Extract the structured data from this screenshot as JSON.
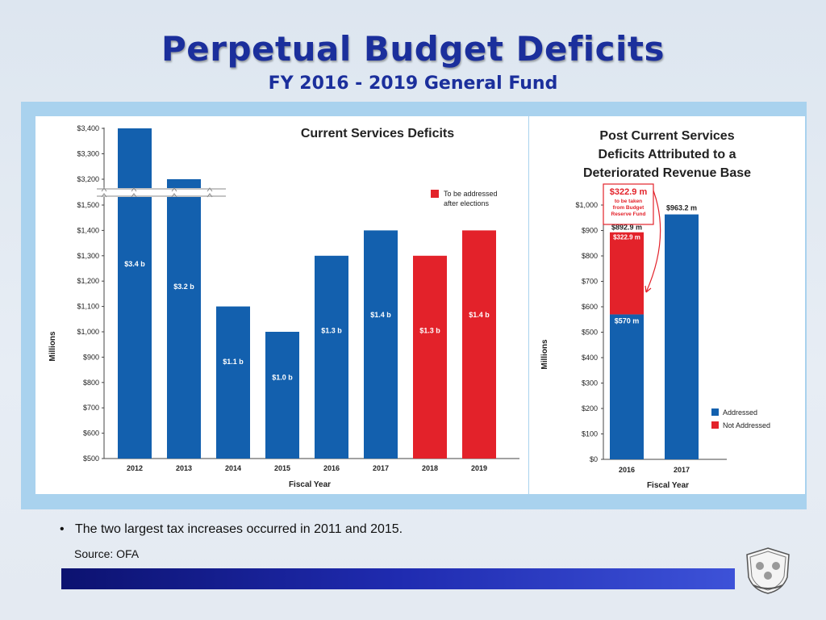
{
  "title": "Perpetual Budget Deficits",
  "subtitle": "FY 2016 - 2019 General Fund",
  "bullet": "The two largest tax increases occurred in 2011 and 2015.",
  "source": "Source: OFA",
  "colors": {
    "blue": "#1360ae",
    "red": "#e3222a",
    "title": "#1b2f9c"
  },
  "chart_data": [
    {
      "type": "bar",
      "title": "Current Services Deficits",
      "xlabel": "Fiscal Year",
      "ylabel": "Millions",
      "axis_break": "between $1,500 and $3,200",
      "yticks_lower": [
        "$500",
        "$600",
        "$700",
        "$800",
        "$900",
        "$1,000",
        "$1,100",
        "$1,200",
        "$1,300",
        "$1,400",
        "$1,500"
      ],
      "yticks_upper": [
        "$3,200",
        "$3,300",
        "$3,400"
      ],
      "categories": [
        "2012",
        "2013",
        "2014",
        "2015",
        "2016",
        "2017",
        "2018",
        "2019"
      ],
      "values": [
        3400,
        3200,
        1100,
        1000,
        1300,
        1400,
        1300,
        1400
      ],
      "labels": [
        "$3.4 b",
        "$3.2 b",
        "$1.1 b",
        "$1.0 b",
        "$1.3 b",
        "$1.4 b",
        "$1.3 b",
        "$1.4 b"
      ],
      "bar_colors": [
        "blue",
        "blue",
        "blue",
        "blue",
        "blue",
        "blue",
        "red",
        "red"
      ],
      "legend": [
        {
          "label": "To be addressed after elections",
          "color": "red"
        }
      ],
      "legend_position": "top-right"
    },
    {
      "type": "bar",
      "stacked": true,
      "title": "Post Current Services Deficits Attributed to a Deteriorated Revenue Base",
      "xlabel": "Fiscal Year",
      "ylabel": "Millions",
      "ylim": [
        0,
        1000
      ],
      "yticks": [
        "$0",
        "$100",
        "$200",
        "$300",
        "$400",
        "$500",
        "$600",
        "$700",
        "$800",
        "$900",
        "$1,000"
      ],
      "categories": [
        "2016",
        "2017"
      ],
      "series": [
        {
          "name": "Addressed",
          "color": "blue",
          "values": [
            570,
            963.2
          ]
        },
        {
          "name": "Not Addressed",
          "color": "red",
          "values": [
            322.9,
            0
          ]
        }
      ],
      "bar_labels": {
        "addressed_2016": "$570 m",
        "not_addressed_2016": "$322.9 m",
        "total_2016": "$892.9 m",
        "total_2017": "$963.2 m"
      },
      "callout": {
        "amount": "$322.9 m",
        "lines": [
          "to be taken",
          "from Budget",
          "Reserve Fund"
        ]
      },
      "legend_position": "right"
    }
  ]
}
